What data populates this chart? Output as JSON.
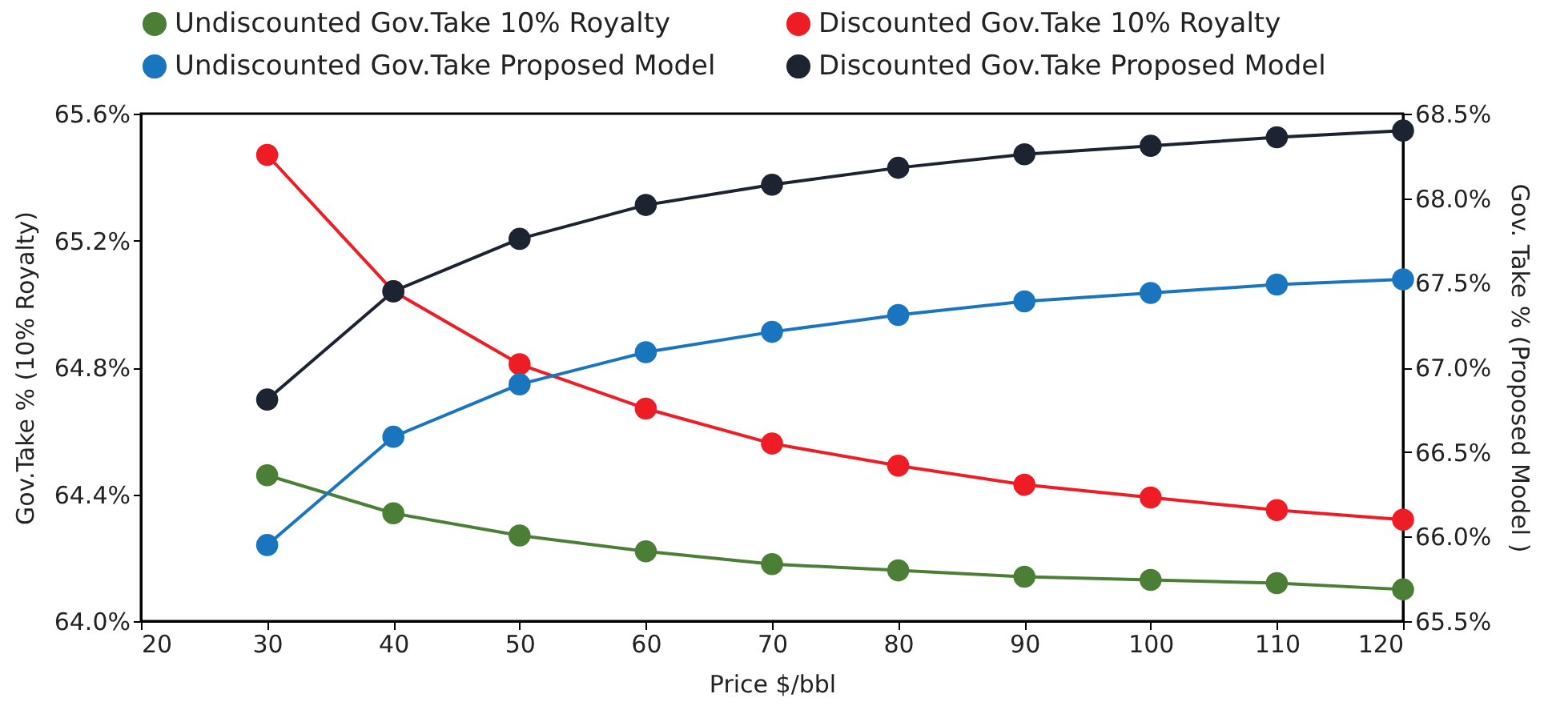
{
  "chart_data": {
    "type": "line",
    "xlabel": "Price $/bbl",
    "ylabel": "Gov.Take % (10% Royalty)",
    "y2label": "Gov. Take % (Proposed Model )",
    "x": [
      30,
      40,
      50,
      60,
      70,
      80,
      90,
      100,
      110,
      120
    ],
    "series": [
      {
        "name": "Undiscounted Gov.Take 10% Royalty",
        "color": "#4a7f35",
        "values": [
          64.46,
          64.34,
          64.27,
          64.22,
          64.18,
          64.16,
          64.14,
          64.13,
          64.12,
          64.1
        ]
      },
      {
        "name": "Discounted Gov.Take 10% Royalty",
        "color": "#ee1c25",
        "values": [
          65.47,
          65.04,
          64.81,
          64.67,
          64.56,
          64.49,
          64.43,
          64.39,
          64.35,
          64.32
        ]
      },
      {
        "name": "Undiscounted Gov.Take Proposed Model",
        "color": "#1a75bf",
        "axis": "y2",
        "values": [
          65.95,
          66.59,
          66.9,
          67.09,
          67.21,
          67.31,
          67.39,
          67.44,
          67.49,
          67.52
        ]
      },
      {
        "name": "Discounted Gov.Take Proposed Model",
        "color": "#1c2331",
        "axis": "y2",
        "values": [
          66.81,
          67.45,
          67.76,
          67.96,
          68.08,
          68.18,
          68.26,
          68.31,
          68.36,
          68.4
        ]
      }
    ],
    "xlim": [
      20,
      120
    ],
    "xticks": [
      20,
      30,
      40,
      50,
      60,
      70,
      80,
      90,
      100,
      110,
      120
    ],
    "ylim": [
      64.0,
      65.6
    ],
    "yticks": [
      {
        "value": 64.0,
        "label": "64.0%"
      },
      {
        "value": 64.4,
        "label": "64.4%"
      },
      {
        "value": 64.8,
        "label": "64.8%"
      },
      {
        "value": 65.2,
        "label": "65.2%"
      },
      {
        "value": 65.6,
        "label": "65.6%"
      }
    ],
    "y2lim": [
      65.5,
      68.5
    ],
    "y2ticks": [
      {
        "value": 65.5,
        "label": "65.5%"
      },
      {
        "value": 66.0,
        "label": "66.0%"
      },
      {
        "value": 66.5,
        "label": "66.5%"
      },
      {
        "value": 67.0,
        "label": "67.0%"
      },
      {
        "value": 67.5,
        "label": "67.5%"
      },
      {
        "value": 68.0,
        "label": "68.0%"
      },
      {
        "value": 68.5,
        "label": "68.5%"
      }
    ],
    "grid": false,
    "legend": "top",
    "marker": "circle",
    "line_style": "solid"
  }
}
